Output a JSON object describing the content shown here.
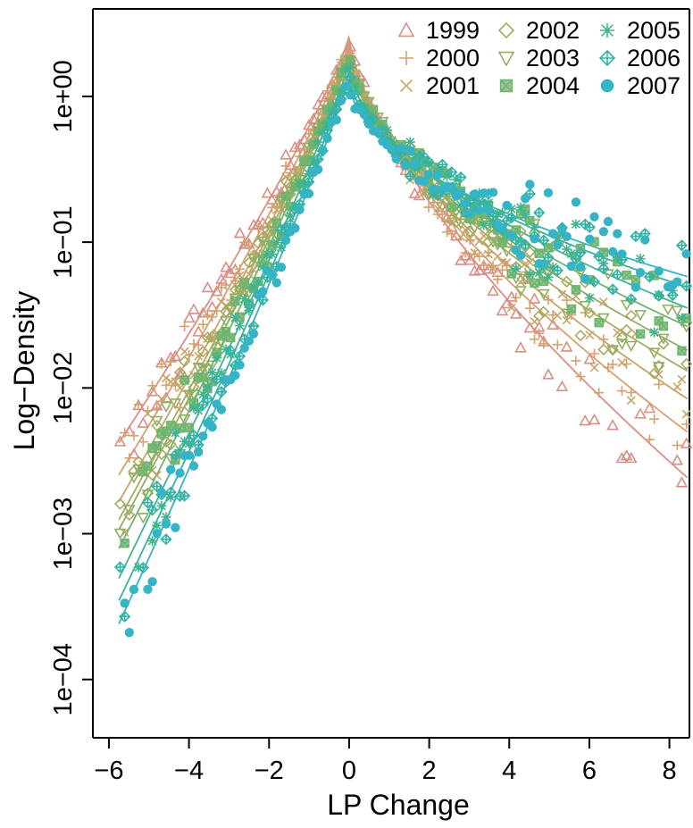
{
  "chart_data": {
    "type": "scatter",
    "title": "",
    "xlabel": "LP Change",
    "ylabel": "Log−Density",
    "xlim": [
      -6.4,
      8.5
    ],
    "ylim_log10": [
      -4.4,
      0.6
    ],
    "y_scale": "log",
    "x_ticks": [
      -6,
      -4,
      -2,
      0,
      2,
      4,
      6,
      8
    ],
    "x_tick_labels": [
      "−6",
      "−4",
      "−2",
      "0",
      "2",
      "4",
      "6",
      "8"
    ],
    "y_ticks": [
      0.0001,
      0.001,
      0.01,
      0.1,
      1
    ],
    "y_tick_labels": [
      "1e−04",
      "1e−03",
      "1e−02",
      "1e−01",
      "1e+00"
    ],
    "grid": false,
    "legend_position": "top-right",
    "legend_columns": 3,
    "fit_model": "Fitted curves: each series has a fitted density drawn as a line of the same color.",
    "series": [
      {
        "name": "1999",
        "color": "#d98f84",
        "marker": "triangle-up",
        "fit": {
          "peak": 2.6,
          "a_left": 0.62,
          "a_right": 0.71,
          "p_left": 0.86,
          "p_right": 0.68
        }
      },
      {
        "name": "2000",
        "color": "#d6a070",
        "marker": "plus",
        "fit": {
          "peak": 2.4,
          "a_left": 0.65,
          "a_right": 0.67,
          "p_left": 0.87,
          "p_right": 0.65
        }
      },
      {
        "name": "2001",
        "color": "#c8a468",
        "marker": "x",
        "fit": {
          "peak": 2.2,
          "a_left": 0.67,
          "a_right": 0.63,
          "p_left": 0.88,
          "p_right": 0.63
        }
      },
      {
        "name": "2002",
        "color": "#a9aa62",
        "marker": "diamond",
        "fit": {
          "peak": 2.1,
          "a_left": 0.68,
          "a_right": 0.6,
          "p_left": 0.89,
          "p_right": 0.61
        }
      },
      {
        "name": "2003",
        "color": "#8fb062",
        "marker": "triangle-down",
        "fit": {
          "peak": 2.0,
          "a_left": 0.69,
          "a_right": 0.58,
          "p_left": 0.89,
          "p_right": 0.59
        }
      },
      {
        "name": "2004",
        "color": "#6db46c",
        "marker": "square-x",
        "fit": {
          "peak": 1.9,
          "a_left": 0.7,
          "a_right": 0.55,
          "p_left": 0.9,
          "p_right": 0.57
        }
      },
      {
        "name": "2005",
        "color": "#3fb58e",
        "marker": "asterisk",
        "fit": {
          "peak": 1.7,
          "a_left": 0.72,
          "a_right": 0.52,
          "p_left": 0.91,
          "p_right": 0.55
        }
      },
      {
        "name": "2006",
        "color": "#33b3a4",
        "marker": "diamond-plus",
        "fit": {
          "peak": 1.5,
          "a_left": 0.74,
          "a_right": 0.49,
          "p_left": 0.91,
          "p_right": 0.52
        }
      },
      {
        "name": "2007",
        "color": "#35b4c6",
        "marker": "circle-plus",
        "fit": {
          "peak": 1.35,
          "a_left": 0.75,
          "a_right": 0.47,
          "p_left": 0.92,
          "p_right": 0.5
        }
      }
    ],
    "x_sample": [
      -5.72,
      -5.49,
      -5.26,
      -5.03,
      -4.8,
      -4.57,
      -4.34,
      -4.11,
      -3.88,
      -3.65,
      -3.42,
      -3.19,
      -2.96,
      -2.73,
      -2.5,
      -2.27,
      -2.04,
      -1.81,
      -1.58,
      -1.35,
      -1.12,
      -0.89,
      -0.66,
      -0.43,
      -0.2,
      0.0,
      0.2,
      0.43,
      0.66,
      0.89,
      1.12,
      1.35,
      1.58,
      1.81,
      2.04,
      2.27,
      2.5,
      2.73,
      2.96,
      3.19,
      3.42,
      3.65,
      3.88,
      4.11,
      4.34,
      4.57,
      4.8,
      5.03,
      5.26,
      5.49,
      5.72,
      5.95,
      6.18,
      6.41,
      6.64,
      6.87,
      7.1,
      7.33,
      7.56,
      7.79,
      8.02,
      8.25,
      8.43
    ],
    "y_sample_log10_note": "Scatter points per series follow the fitted curve with visible scatter; values in log10 density are generated from the fit parameters."
  }
}
